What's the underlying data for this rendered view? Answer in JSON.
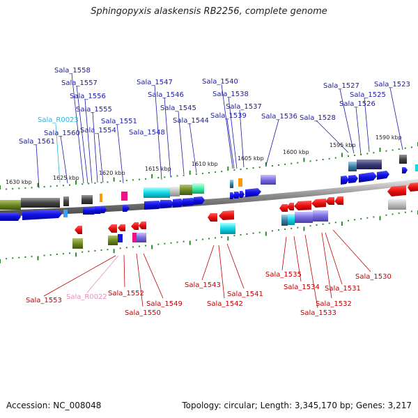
{
  "title": "Sphingopyxis alaskensis RB2256, complete genome",
  "footer": {
    "accession": "Accession: NC_008048",
    "summary": "Topology: circular; Length: 3,345,170 bp; Genes: 3,217"
  },
  "ruler_ticks": [
    {
      "label": "1630 kbp"
    },
    {
      "label": "1625 kbp"
    },
    {
      "label": "1620 kbp"
    },
    {
      "label": "1615 kbp"
    },
    {
      "label": "1610 kbp"
    },
    {
      "label": "1605 kbp"
    },
    {
      "label": "1600 kbp"
    },
    {
      "label": "1595 kbp"
    },
    {
      "label": "1590 kbp"
    }
  ],
  "colors": {
    "forward_label": "#1a1aa8",
    "reverse_label": "#c00000",
    "rna_forward_label": "#2bb5d8",
    "rna_reverse_label": "#e58fb9",
    "forward_feature": "#1515e0",
    "reverse_feature": "#ee1111",
    "backbone": "#777777",
    "tick": "#2a8a2a"
  },
  "forward_labels": [
    {
      "text": "Sala_1558",
      "kind": "cds"
    },
    {
      "text": "Sala_1557",
      "kind": "cds"
    },
    {
      "text": "Sala_1556",
      "kind": "cds"
    },
    {
      "text": "Sala_1555",
      "kind": "cds"
    },
    {
      "text": "Sala_R0023",
      "kind": "rna"
    },
    {
      "text": "Sala_1554",
      "kind": "cds"
    },
    {
      "text": "Sala_1551",
      "kind": "cds"
    },
    {
      "text": "Sala_1560",
      "kind": "cds"
    },
    {
      "text": "Sala_1561",
      "kind": "cds"
    },
    {
      "text": "Sala_1548",
      "kind": "cds"
    },
    {
      "text": "Sala_1547",
      "kind": "cds"
    },
    {
      "text": "Sala_1546",
      "kind": "cds"
    },
    {
      "text": "Sala_1545",
      "kind": "cds"
    },
    {
      "text": "Sala_1544",
      "kind": "cds"
    },
    {
      "text": "Sala_1540",
      "kind": "cds"
    },
    {
      "text": "Sala_1538",
      "kind": "cds"
    },
    {
      "text": "Sala_1537",
      "kind": "cds"
    },
    {
      "text": "Sala_1539",
      "kind": "cds"
    },
    {
      "text": "Sala_1536",
      "kind": "cds"
    },
    {
      "text": "Sala_1528",
      "kind": "cds"
    },
    {
      "text": "Sala_1527",
      "kind": "cds"
    },
    {
      "text": "Sala_1525",
      "kind": "cds"
    },
    {
      "text": "Sala_1526",
      "kind": "cds"
    },
    {
      "text": "Sala_1523",
      "kind": "cds"
    }
  ],
  "reverse_labels": [
    {
      "text": "Sala_1553",
      "kind": "cds"
    },
    {
      "text": "Sala_R0022",
      "kind": "rna"
    },
    {
      "text": "Sala_1552",
      "kind": "cds"
    },
    {
      "text": "Sala_1550",
      "kind": "cds"
    },
    {
      "text": "Sala_1549",
      "kind": "cds"
    },
    {
      "text": "Sala_1543",
      "kind": "cds"
    },
    {
      "text": "Sala_1542",
      "kind": "cds"
    },
    {
      "text": "Sala_1541",
      "kind": "cds"
    },
    {
      "text": "Sala_1535",
      "kind": "cds"
    },
    {
      "text": "Sala_1534",
      "kind": "cds"
    },
    {
      "text": "Sala_1533",
      "kind": "cds"
    },
    {
      "text": "Sala_1532",
      "kind": "cds"
    },
    {
      "text": "Sala_1531",
      "kind": "cds"
    },
    {
      "text": "Sala_1530",
      "kind": "cds"
    }
  ]
}
